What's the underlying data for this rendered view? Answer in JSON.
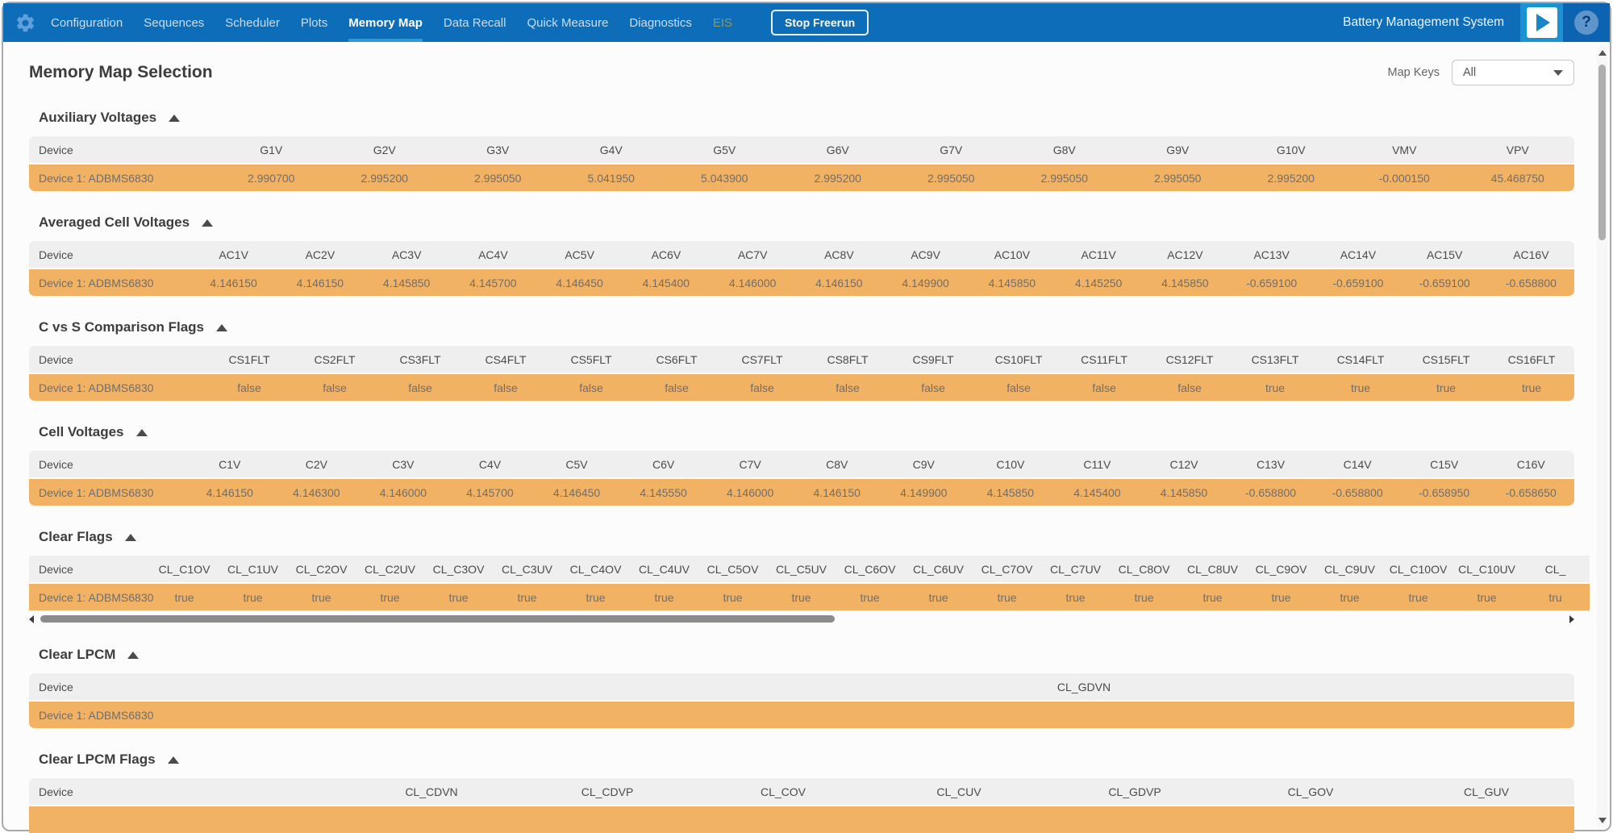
{
  "nav": {
    "tabs": [
      {
        "label": "Configuration"
      },
      {
        "label": "Sequences"
      },
      {
        "label": "Scheduler"
      },
      {
        "label": "Plots"
      },
      {
        "label": "Memory Map",
        "state": "active"
      },
      {
        "label": "Data Recall"
      },
      {
        "label": "Quick Measure"
      },
      {
        "label": "Diagnostics"
      },
      {
        "label": "EIS",
        "state": "disabled"
      }
    ],
    "stop_button": "Stop Freerun",
    "brand": "Battery Management System"
  },
  "page": {
    "title": "Memory Map Selection",
    "map_keys_label": "Map Keys",
    "map_keys_value": "All"
  },
  "device_label": "Device 1: ADBMS6830",
  "sections": [
    {
      "title": "Auxiliary Voltages",
      "columns": [
        "Device",
        "G1V",
        "G2V",
        "G3V",
        "G4V",
        "G5V",
        "G6V",
        "G7V",
        "G8V",
        "G9V",
        "G10V",
        "VMV",
        "VPV"
      ],
      "rows": [
        [
          "Device 1: ADBMS6830",
          "2.990700",
          "2.995200",
          "2.995050",
          "5.041950",
          "5.043900",
          "2.995200",
          "2.995050",
          "2.995050",
          "2.995050",
          "2.995200",
          "-0.000150",
          "45.468750"
        ]
      ]
    },
    {
      "title": "Averaged Cell Voltages",
      "columns": [
        "Device",
        "AC1V",
        "AC2V",
        "AC3V",
        "AC4V",
        "AC5V",
        "AC6V",
        "AC7V",
        "AC8V",
        "AC9V",
        "AC10V",
        "AC11V",
        "AC12V",
        "AC13V",
        "AC14V",
        "AC15V",
        "AC16V"
      ],
      "rows": [
        [
          "Device 1: ADBMS6830",
          "4.146150",
          "4.146150",
          "4.145850",
          "4.145700",
          "4.146450",
          "4.145400",
          "4.146000",
          "4.146150",
          "4.149900",
          "4.145850",
          "4.145250",
          "4.145850",
          "-0.659100",
          "-0.659100",
          "-0.659100",
          "-0.658800"
        ]
      ]
    },
    {
      "title": "C vs S Comparison Flags",
      "columns": [
        "Device",
        "CS1FLT",
        "CS2FLT",
        "CS3FLT",
        "CS4FLT",
        "CS5FLT",
        "CS6FLT",
        "CS7FLT",
        "CS8FLT",
        "CS9FLT",
        "CS10FLT",
        "CS11FLT",
        "CS12FLT",
        "CS13FLT",
        "CS14FLT",
        "CS15FLT",
        "CS16FLT"
      ],
      "rows": [
        [
          "Device 1: ADBMS6830",
          "false",
          "false",
          "false",
          "false",
          "false",
          "false",
          "false",
          "false",
          "false",
          "false",
          "false",
          "false",
          "true",
          "true",
          "true",
          "true"
        ]
      ]
    },
    {
      "title": "Cell Voltages",
      "columns": [
        "Device",
        "C1V",
        "C2V",
        "C3V",
        "C4V",
        "C5V",
        "C6V",
        "C7V",
        "C8V",
        "C9V",
        "C10V",
        "C11V",
        "C12V",
        "C13V",
        "C14V",
        "C15V",
        "C16V"
      ],
      "rows": [
        [
          "Device 1: ADBMS6830",
          "4.146150",
          "4.146300",
          "4.146000",
          "4.145700",
          "4.146450",
          "4.145550",
          "4.146000",
          "4.146150",
          "4.149900",
          "4.145850",
          "4.145400",
          "4.145850",
          "-0.658800",
          "-0.658800",
          "-0.658950",
          "-0.658650"
        ]
      ]
    },
    {
      "title": "Clear Flags",
      "columns": [
        "Device",
        "CL_C1OV",
        "CL_C1UV",
        "CL_C2OV",
        "CL_C2UV",
        "CL_C3OV",
        "CL_C3UV",
        "CL_C4OV",
        "CL_C4UV",
        "CL_C5OV",
        "CL_C5UV",
        "CL_C6OV",
        "CL_C6UV",
        "CL_C7OV",
        "CL_C7UV",
        "CL_C8OV",
        "CL_C8UV",
        "CL_C9OV",
        "CL_C9UV",
        "CL_C10OV",
        "CL_C10UV",
        "CL_"
      ],
      "rows": [
        [
          "Device 1: ADBMS6830",
          "true",
          "true",
          "true",
          "true",
          "true",
          "true",
          "true",
          "true",
          "true",
          "true",
          "true",
          "true",
          "true",
          "true",
          "true",
          "true",
          "true",
          "true",
          "true",
          "true",
          "tru"
        ]
      ],
      "h_scrollbar": true
    },
    {
      "title": "Clear LPCM",
      "columns": [
        "Device",
        "CL_GDVN"
      ],
      "rows": [
        [
          "Device 1: ADBMS6830",
          ""
        ]
      ]
    },
    {
      "title": "Clear LPCM Flags",
      "columns": [
        "Device",
        "CL_CDVN",
        "CL_CDVP",
        "CL_COV",
        "CL_CUV",
        "CL_GDVP",
        "CL_GOV",
        "CL_GUV"
      ],
      "rows": [],
      "partial_row": true
    }
  ],
  "colors": {
    "nav_blue": "#0e6db9",
    "active_tab_underline": "#2f9ad2",
    "play_button_blue": "#1b93d3",
    "row_orange": "#f2b264",
    "header_gray": "#efefef"
  }
}
